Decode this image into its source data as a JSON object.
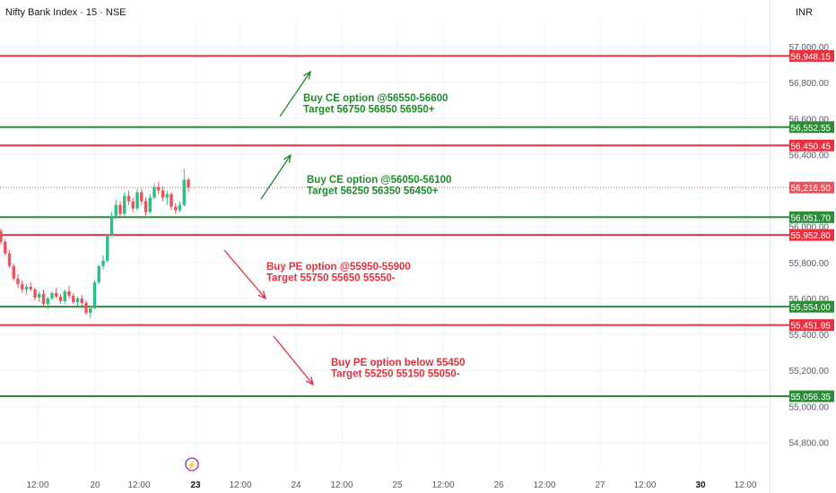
{
  "header": {
    "title": "Nifty Bank Index · 15 · NSE",
    "currency": "INR"
  },
  "colors": {
    "green": "#2e8b3a",
    "red": "#e8313f",
    "up": "#2ebd85",
    "down": "#f0505a",
    "annot_green": "#1e8a2b",
    "annot_red": "#e0303d",
    "grid": "#f0f3fa",
    "text": "#131722",
    "axis_text": "#555a66",
    "lightning": "#9c27b0"
  },
  "chart_data": {
    "type": "candlestick",
    "title": "Nifty Bank Index · 15 · NSE",
    "ylim": [
      54700,
      57100
    ],
    "y_ticks": [
      {
        "value": 57000,
        "label": "57,000.00"
      },
      {
        "value": 56800,
        "label": "56,800.00"
      },
      {
        "value": 56600,
        "label": "56,600.00"
      },
      {
        "value": 56400,
        "label": "56,400.00"
      },
      {
        "value": 56000,
        "label": "56,000.00"
      },
      {
        "value": 55800,
        "label": "55,800.00"
      },
      {
        "value": 55600,
        "label": "55,600.00"
      },
      {
        "value": 55400,
        "label": "55,400.00"
      },
      {
        "value": 55200,
        "label": "55,200.00"
      },
      {
        "value": 55000,
        "label": "55,000.00"
      },
      {
        "value": 54800,
        "label": "54,800.00"
      }
    ],
    "x_ticks": [
      {
        "label": "12:00",
        "bold": false
      },
      {
        "label": "20",
        "bold": false
      },
      {
        "label": "12:00",
        "bold": false
      },
      {
        "label": "23",
        "bold": true
      },
      {
        "label": "12:00",
        "bold": false
      },
      {
        "label": "24",
        "bold": false
      },
      {
        "label": "12:00",
        "bold": false
      },
      {
        "label": "25",
        "bold": false
      },
      {
        "label": "12:00",
        "bold": false
      },
      {
        "label": "26",
        "bold": false
      },
      {
        "label": "12:00",
        "bold": false
      },
      {
        "label": "27",
        "bold": false
      },
      {
        "label": "12:00",
        "bold": false
      },
      {
        "label": "30",
        "bold": true
      },
      {
        "label": "12:00",
        "bold": false
      }
    ],
    "levels": [
      {
        "value": 56948.15,
        "label": "56,948.15",
        "color": "red"
      },
      {
        "value": 56552.55,
        "label": "56,552.55",
        "color": "green"
      },
      {
        "value": 56450.45,
        "label": "56,450.45",
        "color": "red"
      },
      {
        "value": 56051.7,
        "label": "56,051.70",
        "color": "green"
      },
      {
        "value": 55952.8,
        "label": "55,952.80",
        "color": "red"
      },
      {
        "value": 55554.0,
        "label": "55,554.00",
        "color": "green"
      },
      {
        "value": 55451.95,
        "label": "55,451.95",
        "color": "red"
      },
      {
        "value": 55056.35,
        "label": "55,056.35",
        "color": "green"
      }
    ],
    "last_price": {
      "value": 56216.5,
      "label": "56,216.50"
    },
    "annotations": [
      {
        "lines": [
          "Buy CE option @56550-56600",
          "Target 56750 56850 56950+"
        ],
        "color": "green",
        "arrow": [
          [
            56590,
            56870
          ],
          [
            56620,
            56940
          ]
        ],
        "y": 56690,
        "x_index": 68
      },
      {
        "lines": [
          "Buy CE option @56050-56100",
          "Target 56250 56350 56450+"
        ],
        "color": "green",
        "arrow": [
          [
            56120,
            56380
          ],
          [
            56150,
            56450
          ]
        ],
        "y": 56180,
        "x_index": 68
      },
      {
        "lines": [
          "Buy PE option @55950-55900",
          "Target 55750 55650 55550-"
        ],
        "color": "red",
        "arrow": [
          [
            55900,
            55600
          ],
          [
            55880,
            55600
          ]
        ],
        "y": 55810,
        "x_index": 59
      },
      {
        "lines": [
          "Buy PE option below 55450",
          "Target 55250 55150 55050-"
        ],
        "color": "red",
        "arrow": [
          [
            55400,
            55130
          ],
          [
            55380,
            55130
          ]
        ],
        "y": 55170,
        "x_index": 73
      }
    ],
    "candles": [
      [
        55975,
        55990,
        55900,
        55915
      ],
      [
        55915,
        55930,
        55840,
        55850
      ],
      [
        55850,
        55870,
        55770,
        55780
      ],
      [
        55780,
        55795,
        55700,
        55710
      ],
      [
        55710,
        55735,
        55660,
        55680
      ],
      [
        55680,
        55700,
        55630,
        55650
      ],
      [
        55650,
        55680,
        55620,
        55665
      ],
      [
        55665,
        55690,
        55640,
        55650
      ],
      [
        55650,
        55660,
        55590,
        55605
      ],
      [
        55605,
        55640,
        55580,
        55625
      ],
      [
        55625,
        55650,
        55560,
        55570
      ],
      [
        55570,
        55610,
        55540,
        55600
      ],
      [
        55600,
        55640,
        55590,
        55630
      ],
      [
        55630,
        55660,
        55600,
        55610
      ],
      [
        55610,
        55625,
        55570,
        55585
      ],
      [
        55585,
        55650,
        55570,
        55640
      ],
      [
        55640,
        55670,
        55600,
        55615
      ],
      [
        55615,
        55630,
        55570,
        55580
      ],
      [
        55580,
        55610,
        55560,
        55600
      ],
      [
        55600,
        55620,
        55560,
        55575
      ],
      [
        55575,
        55590,
        55510,
        55520
      ],
      [
        55520,
        55560,
        55490,
        55545
      ],
      [
        55545,
        55700,
        55540,
        55690
      ],
      [
        55690,
        55790,
        55680,
        55780
      ],
      [
        55780,
        55840,
        55760,
        55810
      ],
      [
        55810,
        55960,
        55800,
        55950
      ],
      [
        55950,
        56080,
        55940,
        56060
      ],
      [
        56060,
        56150,
        56040,
        56120
      ],
      [
        56120,
        56140,
        56050,
        56070
      ],
      [
        56070,
        56190,
        56060,
        56170
      ],
      [
        56170,
        56200,
        56120,
        56140
      ],
      [
        56140,
        56160,
        56080,
        56100
      ],
      [
        56100,
        56210,
        56090,
        56190
      ],
      [
        56190,
        56210,
        56120,
        56140
      ],
      [
        56140,
        56160,
        56060,
        56080
      ],
      [
        56080,
        56180,
        56070,
        56160
      ],
      [
        56160,
        56240,
        56150,
        56220
      ],
      [
        56220,
        56250,
        56180,
        56200
      ],
      [
        56200,
        56220,
        56140,
        56160
      ],
      [
        56160,
        56200,
        56120,
        56180
      ],
      [
        56180,
        56190,
        56090,
        56110
      ],
      [
        56110,
        56130,
        56070,
        56090
      ],
      [
        56090,
        56140,
        56080,
        56120
      ],
      [
        56120,
        56320,
        56110,
        56260
      ],
      [
        56260,
        56270,
        56190,
        56216.5
      ]
    ],
    "lightning_marker": {
      "x_index": 41,
      "symbol": "⚡"
    }
  }
}
